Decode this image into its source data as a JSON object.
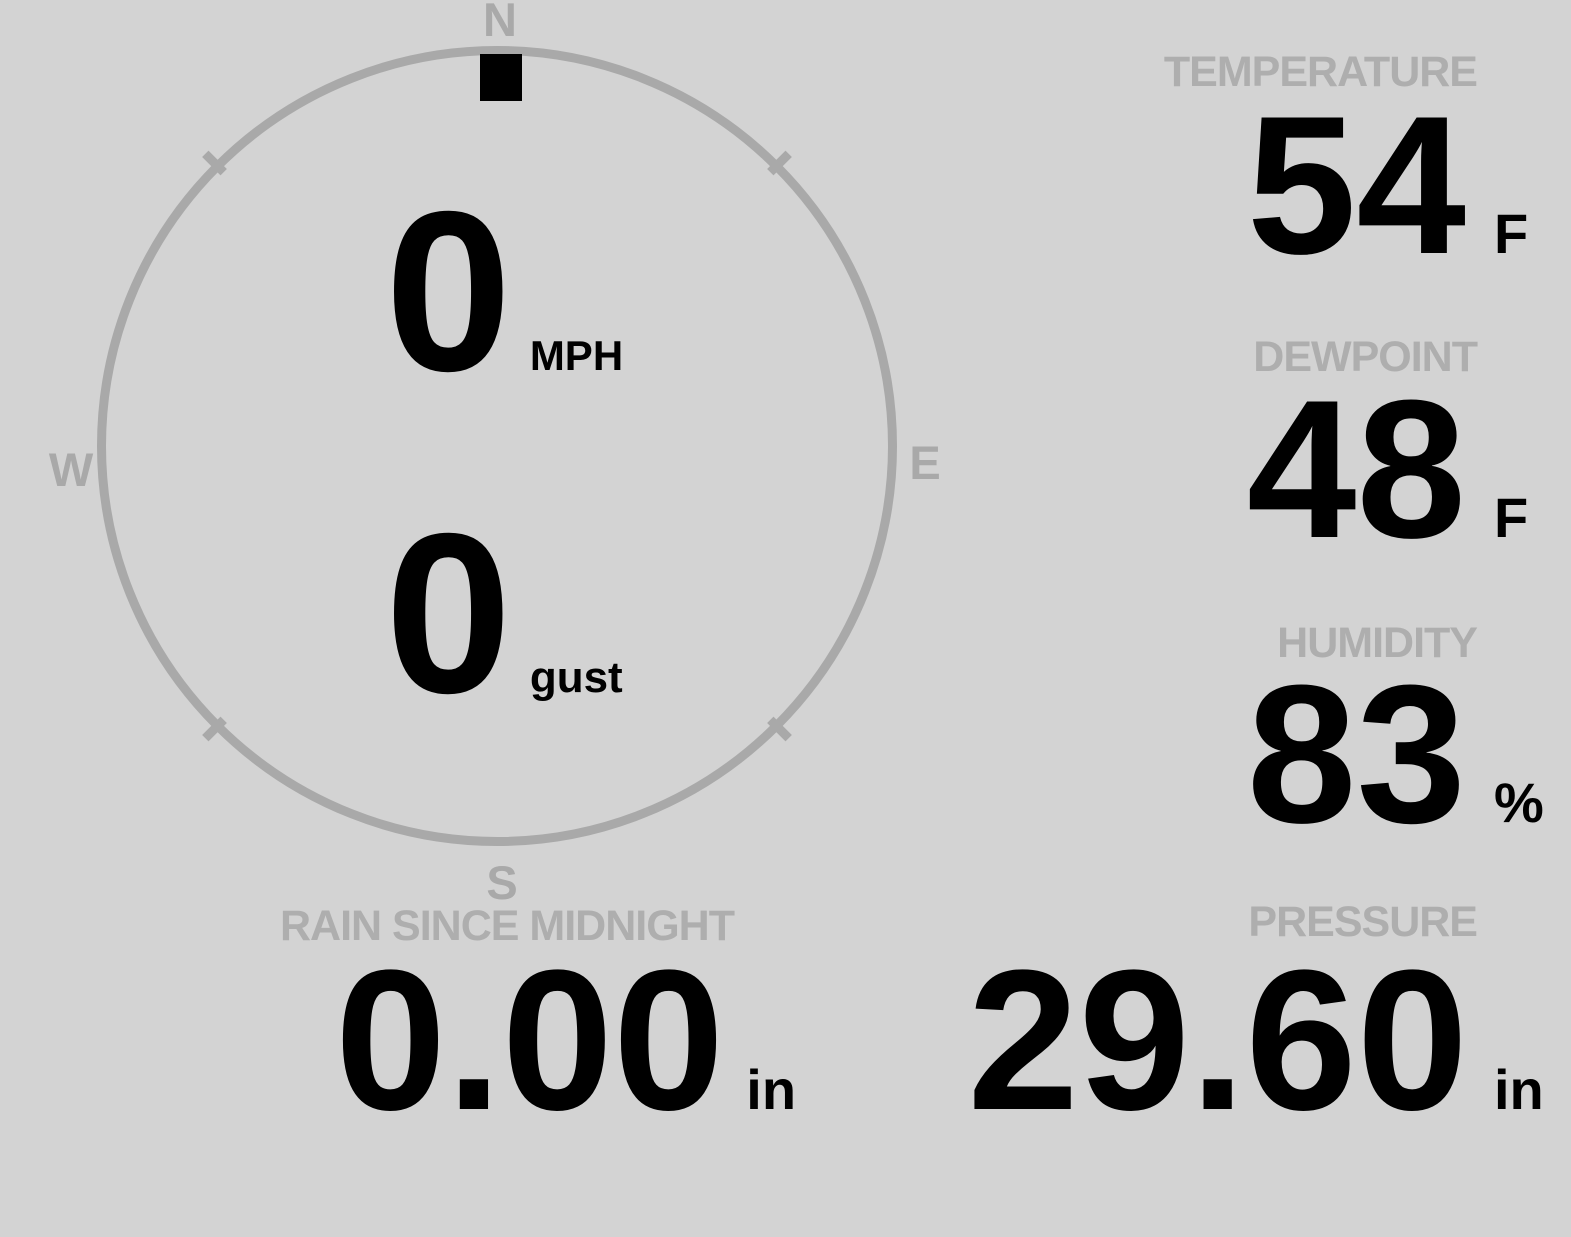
{
  "colors": {
    "background": "#d3d3d3",
    "dial": "#a9a9a9",
    "label": "#aeaeae",
    "value": "#000000"
  },
  "compass": {
    "cardinals": {
      "north": "N",
      "east": "E",
      "south": "S",
      "west": "W"
    },
    "wind": {
      "direction_pointer": "N",
      "speed": "0",
      "speed_unit": "MPH",
      "gust": "0",
      "gust_unit": "gust"
    }
  },
  "stats": {
    "temperature": {
      "label": "TEMPERATURE",
      "value": "54",
      "unit": "F"
    },
    "dewpoint": {
      "label": "DEWPOINT",
      "value": "48",
      "unit": "F"
    },
    "humidity": {
      "label": "HUMIDITY",
      "value": "83",
      "unit": "%"
    },
    "rain": {
      "label": "RAIN SINCE MIDNIGHT",
      "value": "0.00",
      "unit": "in"
    },
    "pressure": {
      "label": "PRESSURE",
      "value": "29.60",
      "unit": "in"
    }
  }
}
